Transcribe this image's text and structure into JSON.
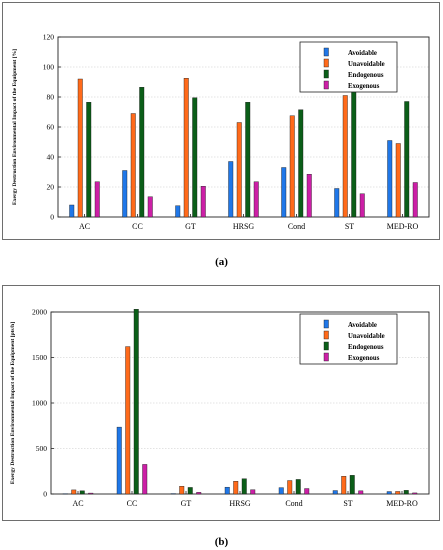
{
  "chart_data": [
    {
      "type": "bar",
      "caption": "(a)",
      "ylabel": "Exergy Destruction Environmental Impact of the Equipment [%]",
      "categories": [
        "AC",
        "CC",
        "GT",
        "HRSG",
        "Cond",
        "ST",
        "MED-RO"
      ],
      "ylim": [
        0,
        120
      ],
      "yticks": [
        0,
        20,
        40,
        60,
        80,
        100,
        120
      ],
      "ytick_labels": [
        "0",
        "20",
        "40",
        "60",
        "80",
        "100",
        "120"
      ],
      "grid": "horizontal",
      "legend_position": "top-right",
      "series": [
        {
          "name": "Avoidable",
          "color": "#1f77e8",
          "values": [
            8,
            31,
            7.5,
            37,
            33,
            19,
            51
          ]
        },
        {
          "name": "Unavoidable",
          "color": "#ff6a1a",
          "values": [
            92,
            69,
            92.5,
            63,
            67.5,
            81,
            49
          ]
        },
        {
          "name": "Endogenous",
          "color": "#0b5e18",
          "values": [
            76.5,
            86.5,
            79.5,
            76.5,
            71.5,
            85,
            77
          ]
        },
        {
          "name": "Exogenous",
          "color": "#cc1fa6",
          "values": [
            23.5,
            13.5,
            20.5,
            23.5,
            28.5,
            15.5,
            23
          ]
        }
      ]
    },
    {
      "type": "bar",
      "caption": "(b)",
      "ylabel": "Exergy Destruction Environmental Impact of the Equipment [pts/h]",
      "categories": [
        "AC",
        "CC",
        "GT",
        "HRSG",
        "Cond",
        "ST",
        "MED-RO"
      ],
      "ylim": [
        0,
        2000
      ],
      "yticks": [
        0,
        500,
        1000,
        1500,
        2000
      ],
      "ytick_labels": [
        "0",
        "500",
        "1000",
        "1500",
        "2000"
      ],
      "grid": "horizontal",
      "legend_position": "top-right",
      "series": [
        {
          "name": "Avoidable",
          "color": "#1f77e8",
          "values": [
            4,
            735,
            5,
            75,
            70,
            38,
            27
          ]
        },
        {
          "name": "Unavoidable",
          "color": "#ff6a1a",
          "values": [
            45,
            1620,
            85,
            140,
            148,
            195,
            28
          ]
        },
        {
          "name": "Endogenous",
          "color": "#0b5e18",
          "values": [
            35,
            2030,
            72,
            168,
            160,
            205,
            40
          ]
        },
        {
          "name": "Exogenous",
          "color": "#cc1fa6",
          "values": [
            10,
            325,
            18,
            47,
            60,
            35,
            12
          ]
        }
      ]
    }
  ]
}
